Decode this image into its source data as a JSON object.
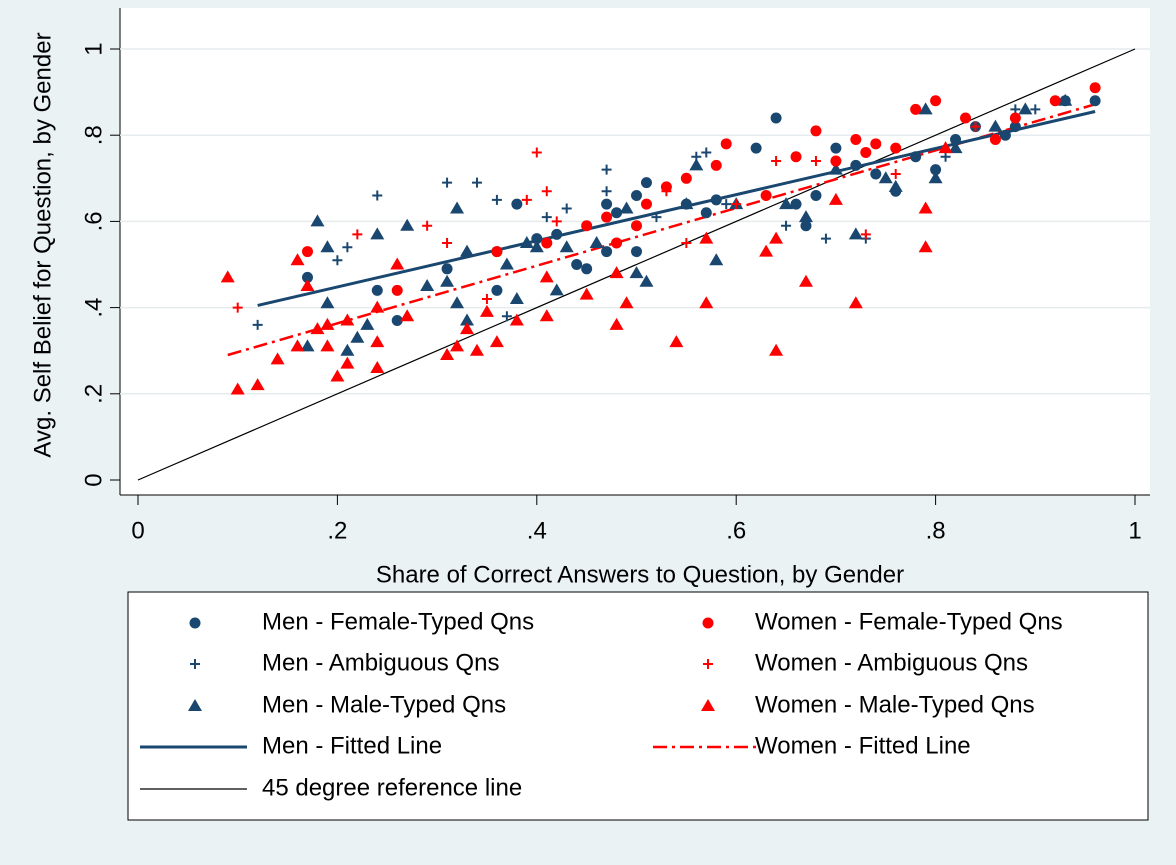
{
  "chart_data": {
    "type": "scatter",
    "xlabel": "Share of Correct Answers to Question, by Gender",
    "ylabel": "Avg. Self Belief for Question, by Gender",
    "xlim": [
      0,
      1
    ],
    "ylim": [
      0,
      1
    ],
    "xticks": [
      0,
      {
        "value": 0.2,
        "label": ".2"
      },
      {
        "value": 0.4,
        "label": ".4"
      },
      {
        "value": 0.6,
        "label": ".6"
      },
      {
        "value": 0.8,
        "label": ".8"
      },
      1
    ],
    "yticks": [
      0,
      {
        "value": 0.2,
        "label": ".2"
      },
      {
        "value": 0.4,
        "label": ".4"
      },
      {
        "value": 0.6,
        "label": ".6"
      },
      {
        "value": 0.8,
        "label": ".8"
      },
      1
    ],
    "grid": true,
    "series": [
      {
        "name": "Men - Female-Typed Qns",
        "color": "#1a476f",
        "marker": "circle",
        "x": [
          0.17,
          0.24,
          0.26,
          0.31,
          0.36,
          0.38,
          0.36,
          0.4,
          0.42,
          0.44,
          0.45,
          0.47,
          0.47,
          0.48,
          0.5,
          0.51,
          0.5,
          0.55,
          0.57,
          0.58,
          0.62,
          0.64,
          0.66,
          0.67,
          0.68,
          0.7,
          0.72,
          0.74,
          0.76,
          0.78,
          0.8,
          0.82,
          0.84,
          0.87,
          0.88,
          0.93,
          0.96
        ],
        "values": [
          0.47,
          0.44,
          0.37,
          0.49,
          0.53,
          0.64,
          0.44,
          0.56,
          0.57,
          0.5,
          0.49,
          0.64,
          0.53,
          0.62,
          0.53,
          0.69,
          0.66,
          0.64,
          0.62,
          0.65,
          0.77,
          0.84,
          0.64,
          0.59,
          0.66,
          0.77,
          0.73,
          0.71,
          0.67,
          0.75,
          0.72,
          0.79,
          0.82,
          0.8,
          0.82,
          0.88,
          0.88
        ]
      },
      {
        "name": "Men - Ambiguous Qns",
        "color": "#1a476f",
        "marker": "plus",
        "x": [
          0.12,
          0.2,
          0.21,
          0.24,
          0.31,
          0.34,
          0.36,
          0.37,
          0.41,
          0.43,
          0.47,
          0.47,
          0.52,
          0.56,
          0.57,
          0.59,
          0.65,
          0.69,
          0.73,
          0.81,
          0.84,
          0.88,
          0.9
        ],
        "values": [
          0.36,
          0.51,
          0.54,
          0.66,
          0.69,
          0.69,
          0.65,
          0.38,
          0.61,
          0.63,
          0.67,
          0.72,
          0.61,
          0.75,
          0.76,
          0.64,
          0.59,
          0.56,
          0.56,
          0.75,
          0.82,
          0.86,
          0.86
        ]
      },
      {
        "name": "Men - Male-Typed Qns",
        "color": "#1a476f",
        "marker": "triangle",
        "x": [
          0.18,
          0.17,
          0.19,
          0.19,
          0.21,
          0.22,
          0.23,
          0.24,
          0.27,
          0.29,
          0.31,
          0.32,
          0.32,
          0.33,
          0.33,
          0.37,
          0.38,
          0.39,
          0.4,
          0.42,
          0.43,
          0.46,
          0.49,
          0.5,
          0.51,
          0.55,
          0.56,
          0.58,
          0.6,
          0.65,
          0.67,
          0.7,
          0.72,
          0.75,
          0.76,
          0.79,
          0.8,
          0.82,
          0.86,
          0.89,
          0.93
        ],
        "values": [
          0.6,
          0.31,
          0.41,
          0.54,
          0.3,
          0.33,
          0.36,
          0.57,
          0.59,
          0.45,
          0.46,
          0.63,
          0.41,
          0.53,
          0.37,
          0.5,
          0.42,
          0.55,
          0.54,
          0.44,
          0.54,
          0.55,
          0.63,
          0.48,
          0.46,
          0.64,
          0.73,
          0.51,
          0.64,
          0.64,
          0.61,
          0.72,
          0.57,
          0.7,
          0.68,
          0.86,
          0.7,
          0.77,
          0.82,
          0.86,
          0.88
        ]
      },
      {
        "name": "Women - Female-Typed Qns",
        "color": "#ff0000",
        "marker": "circle",
        "x": [
          0.17,
          0.26,
          0.36,
          0.41,
          0.45,
          0.47,
          0.48,
          0.5,
          0.51,
          0.53,
          0.55,
          0.58,
          0.59,
          0.63,
          0.66,
          0.68,
          0.7,
          0.72,
          0.73,
          0.74,
          0.76,
          0.78,
          0.8,
          0.83,
          0.86,
          0.88,
          0.92,
          0.96
        ],
        "values": [
          0.53,
          0.44,
          0.53,
          0.55,
          0.59,
          0.61,
          0.55,
          0.59,
          0.64,
          0.68,
          0.7,
          0.73,
          0.78,
          0.66,
          0.75,
          0.81,
          0.74,
          0.79,
          0.76,
          0.78,
          0.77,
          0.86,
          0.88,
          0.84,
          0.79,
          0.84,
          0.88,
          0.91
        ]
      },
      {
        "name": "Women - Ambiguous Qns",
        "color": "#ff0000",
        "marker": "plus",
        "x": [
          0.1,
          0.22,
          0.29,
          0.31,
          0.35,
          0.39,
          0.4,
          0.41,
          0.42,
          0.53,
          0.55,
          0.6,
          0.64,
          0.68,
          0.73,
          0.76,
          0.84
        ],
        "values": [
          0.4,
          0.57,
          0.59,
          0.55,
          0.42,
          0.65,
          0.76,
          0.67,
          0.6,
          0.67,
          0.55,
          0.64,
          0.74,
          0.74,
          0.57,
          0.71,
          0.82
        ]
      },
      {
        "name": "Women - Male-Typed Qns",
        "color": "#ff0000",
        "marker": "triangle",
        "x": [
          0.09,
          0.1,
          0.12,
          0.14,
          0.16,
          0.16,
          0.17,
          0.18,
          0.19,
          0.19,
          0.2,
          0.21,
          0.21,
          0.24,
          0.24,
          0.24,
          0.26,
          0.27,
          0.31,
          0.32,
          0.33,
          0.34,
          0.35,
          0.36,
          0.38,
          0.41,
          0.41,
          0.45,
          0.48,
          0.48,
          0.49,
          0.54,
          0.57,
          0.57,
          0.63,
          0.64,
          0.64,
          0.67,
          0.7,
          0.72,
          0.79,
          0.79,
          0.81
        ],
        "values": [
          0.47,
          0.21,
          0.22,
          0.28,
          0.31,
          0.51,
          0.45,
          0.35,
          0.31,
          0.36,
          0.24,
          0.27,
          0.37,
          0.26,
          0.32,
          0.4,
          0.5,
          0.38,
          0.29,
          0.31,
          0.35,
          0.3,
          0.39,
          0.32,
          0.37,
          0.47,
          0.38,
          0.43,
          0.36,
          0.48,
          0.41,
          0.32,
          0.41,
          0.56,
          0.53,
          0.3,
          0.56,
          0.46,
          0.65,
          0.41,
          0.63,
          0.54,
          0.77
        ]
      },
      {
        "name": "Men - Fitted Line",
        "color": "#1a476f",
        "marker": "line",
        "dash": "solid",
        "x": [
          0.12,
          0.96
        ],
        "values": [
          0.405,
          0.855
        ]
      },
      {
        "name": "Women - Fitted Line",
        "color": "#ff0000",
        "marker": "line",
        "dash": "dashdot",
        "x": [
          0.09,
          0.965
        ],
        "values": [
          0.29,
          0.875
        ]
      },
      {
        "name": "45 degree reference line",
        "color": "#000000",
        "marker": "line",
        "dash": "thin",
        "x": [
          0,
          1
        ],
        "values": [
          0,
          1
        ]
      }
    ]
  }
}
